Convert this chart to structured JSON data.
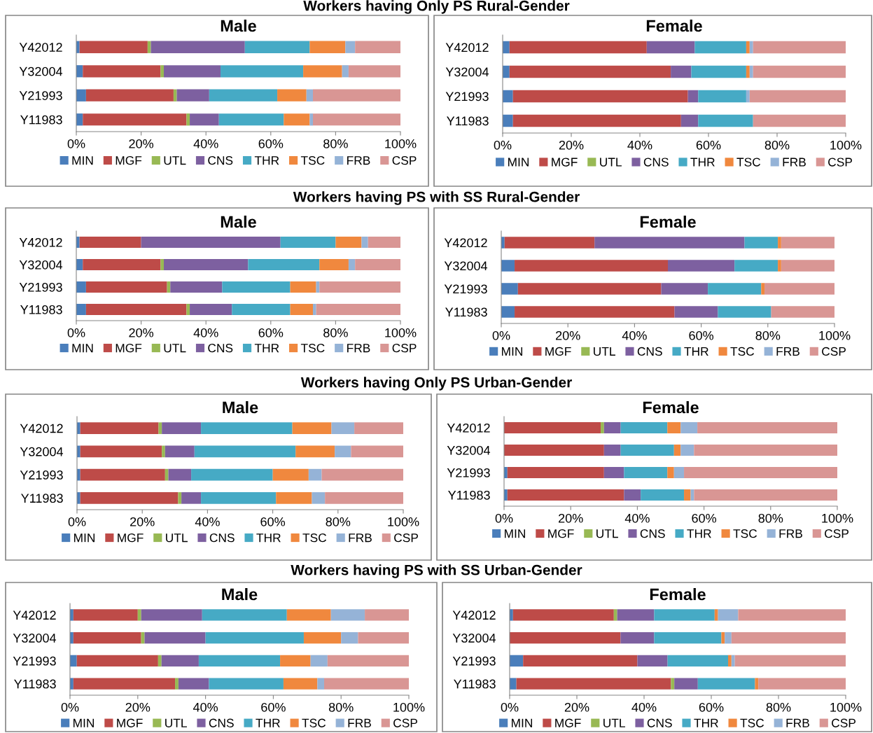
{
  "chart_data": [
    {
      "type": "bar",
      "orientation": "horizontal",
      "stacked": true,
      "subtitle": "Workers having Only PS Rural-Gender",
      "title": "Male",
      "categories": [
        "Y42012",
        "Y32004",
        "Y21993",
        "Y11983"
      ],
      "xlim": [
        0,
        100
      ],
      "xticks": [
        {
          "value": 0,
          "label": "0%"
        },
        {
          "value": 20,
          "label": "20%"
        },
        {
          "value": 40,
          "label": "40%"
        },
        {
          "value": 60,
          "label": "60%"
        },
        {
          "value": 80,
          "label": "80%"
        },
        {
          "value": 100,
          "label": "100%"
        }
      ],
      "legend": "bottom",
      "grid": false,
      "series": [
        {
          "name": "MIN",
          "color": "#4a7ebb",
          "values": [
            1,
            2,
            3,
            2
          ]
        },
        {
          "name": "MGF",
          "color": "#be4b48",
          "values": [
            21,
            24,
            27,
            32
          ]
        },
        {
          "name": "UTL",
          "color": "#98b954",
          "values": [
            1,
            1,
            1,
            1
          ]
        },
        {
          "name": "CNS",
          "color": "#7d60a0",
          "values": [
            29,
            17.5,
            10,
            9
          ]
        },
        {
          "name": "THR",
          "color": "#46aac5",
          "values": [
            20,
            25.5,
            21,
            20
          ]
        },
        {
          "name": "TSC",
          "color": "#f0883e",
          "values": [
            11,
            12,
            9,
            8
          ]
        },
        {
          "name": "FRB",
          "color": "#95b3d7",
          "values": [
            3,
            2,
            2,
            1
          ]
        },
        {
          "name": "CSP",
          "color": "#d99694",
          "values": [
            14,
            16,
            27,
            27
          ]
        }
      ]
    },
    {
      "type": "bar",
      "orientation": "horizontal",
      "stacked": true,
      "title": "Female",
      "categories": [
        "Y42012",
        "Y32004",
        "Y21993",
        "Y11983"
      ],
      "xlim": [
        0,
        100
      ],
      "xticks": [
        {
          "value": 0,
          "label": "0%"
        },
        {
          "value": 20,
          "label": "20%"
        },
        {
          "value": 40,
          "label": "40%"
        },
        {
          "value": 60,
          "label": "60%"
        },
        {
          "value": 80,
          "label": "80%"
        },
        {
          "value": 100,
          "label": "100%"
        }
      ],
      "legend": "bottom",
      "grid": false,
      "series": [
        {
          "name": "MIN",
          "color": "#4a7ebb",
          "values": [
            2,
            2,
            3,
            3
          ]
        },
        {
          "name": "MGF",
          "color": "#be4b48",
          "values": [
            40,
            47,
            51,
            49
          ]
        },
        {
          "name": "UTL",
          "color": "#98b954",
          "values": [
            0,
            0,
            0,
            0
          ]
        },
        {
          "name": "CNS",
          "color": "#7d60a0",
          "values": [
            14,
            6,
            3,
            5
          ]
        },
        {
          "name": "THR",
          "color": "#46aac5",
          "values": [
            15,
            16,
            14,
            16
          ]
        },
        {
          "name": "TSC",
          "color": "#f0883e",
          "values": [
            1,
            1,
            0,
            0
          ]
        },
        {
          "name": "FRB",
          "color": "#95b3d7",
          "values": [
            1,
            1,
            1,
            0
          ]
        },
        {
          "name": "CSP",
          "color": "#d99694",
          "values": [
            27,
            27,
            28,
            27
          ]
        }
      ]
    },
    {
      "type": "bar",
      "orientation": "horizontal",
      "stacked": true,
      "subtitle": "Workers having PS with SS Rural-Gender",
      "title": "Male",
      "categories": [
        "Y42012",
        "Y32004",
        "Y21993",
        "Y11983"
      ],
      "xlim": [
        0,
        100
      ],
      "xticks": [
        {
          "value": 0,
          "label": "0%"
        },
        {
          "value": 20,
          "label": "20%"
        },
        {
          "value": 40,
          "label": "40%"
        },
        {
          "value": 60,
          "label": "60%"
        },
        {
          "value": 80,
          "label": "80%"
        },
        {
          "value": 100,
          "label": "100%"
        }
      ],
      "legend": "bottom",
      "grid": false,
      "series": [
        {
          "name": "MIN",
          "color": "#4a7ebb",
          "values": [
            1,
            2,
            3,
            3
          ]
        },
        {
          "name": "MGF",
          "color": "#be4b48",
          "values": [
            19,
            24,
            25,
            31
          ]
        },
        {
          "name": "UTL",
          "color": "#98b954",
          "values": [
            0,
            1,
            1,
            1
          ]
        },
        {
          "name": "CNS",
          "color": "#7d60a0",
          "values": [
            43,
            26,
            16,
            13
          ]
        },
        {
          "name": "THR",
          "color": "#46aac5",
          "values": [
            17,
            22,
            21,
            18
          ]
        },
        {
          "name": "TSC",
          "color": "#f0883e",
          "values": [
            8,
            9,
            8,
            7
          ]
        },
        {
          "name": "FRB",
          "color": "#95b3d7",
          "values": [
            2,
            2,
            1,
            1
          ]
        },
        {
          "name": "CSP",
          "color": "#d99694",
          "values": [
            10,
            14,
            25,
            26
          ]
        }
      ]
    },
    {
      "type": "bar",
      "orientation": "horizontal",
      "stacked": true,
      "title": "Female",
      "categories": [
        "Y42012",
        "Y32004",
        "Y21993",
        "Y11983"
      ],
      "xlim": [
        0,
        100
      ],
      "xticks": [
        {
          "value": 0,
          "label": "0%"
        },
        {
          "value": 20,
          "label": "20%"
        },
        {
          "value": 40,
          "label": "40%"
        },
        {
          "value": 60,
          "label": "60%"
        },
        {
          "value": 80,
          "label": "80%"
        },
        {
          "value": 100,
          "label": "100%"
        }
      ],
      "legend": "bottom",
      "grid": false,
      "series": [
        {
          "name": "MIN",
          "color": "#4a7ebb",
          "values": [
            1,
            4,
            5,
            4
          ]
        },
        {
          "name": "MGF",
          "color": "#be4b48",
          "values": [
            27,
            46,
            43,
            48
          ]
        },
        {
          "name": "UTL",
          "color": "#98b954",
          "values": [
            0,
            0,
            0,
            0
          ]
        },
        {
          "name": "CNS",
          "color": "#7d60a0",
          "values": [
            45,
            20,
            14,
            13
          ]
        },
        {
          "name": "THR",
          "color": "#46aac5",
          "values": [
            10,
            13,
            16,
            16
          ]
        },
        {
          "name": "TSC",
          "color": "#f0883e",
          "values": [
            1,
            1,
            1,
            0
          ]
        },
        {
          "name": "FRB",
          "color": "#95b3d7",
          "values": [
            0,
            0,
            0,
            0
          ]
        },
        {
          "name": "CSP",
          "color": "#d99694",
          "values": [
            16,
            16,
            21,
            19
          ]
        }
      ]
    },
    {
      "type": "bar",
      "orientation": "horizontal",
      "stacked": true,
      "subtitle": "Workers having Only PS Urban-Gender",
      "title": "Male",
      "categories": [
        "Y42012",
        "Y32004",
        "Y21993",
        "Y11983"
      ],
      "xlim": [
        0,
        100
      ],
      "xticks": [
        {
          "value": 0,
          "label": "0%"
        },
        {
          "value": 20,
          "label": "20%"
        },
        {
          "value": 40,
          "label": "40%"
        },
        {
          "value": 60,
          "label": "60%"
        },
        {
          "value": 80,
          "label": "80%"
        },
        {
          "value": 100,
          "label": "100%"
        }
      ],
      "legend": "bottom",
      "grid": false,
      "series": [
        {
          "name": "MIN",
          "color": "#4a7ebb",
          "values": [
            1,
            1,
            1,
            1
          ]
        },
        {
          "name": "MGF",
          "color": "#be4b48",
          "values": [
            24,
            25,
            26,
            30
          ]
        },
        {
          "name": "UTL",
          "color": "#98b954",
          "values": [
            1,
            1,
            1,
            1
          ]
        },
        {
          "name": "CNS",
          "color": "#7d60a0",
          "values": [
            12,
            9,
            7,
            6
          ]
        },
        {
          "name": "THR",
          "color": "#46aac5",
          "values": [
            28,
            31,
            25,
            23
          ]
        },
        {
          "name": "TSC",
          "color": "#f0883e",
          "values": [
            12,
            12,
            11,
            11
          ]
        },
        {
          "name": "FRB",
          "color": "#95b3d7",
          "values": [
            7,
            5,
            4,
            4
          ]
        },
        {
          "name": "CSP",
          "color": "#d99694",
          "values": [
            15,
            16,
            25,
            24
          ]
        }
      ]
    },
    {
      "type": "bar",
      "orientation": "horizontal",
      "stacked": true,
      "title": "Female",
      "categories": [
        "Y42012",
        "Y32004",
        "Y21993",
        "Y11983"
      ],
      "xlim": [
        0,
        100
      ],
      "xticks": [
        {
          "value": 0,
          "label": "0%"
        },
        {
          "value": 20,
          "label": "20%"
        },
        {
          "value": 40,
          "label": "40%"
        },
        {
          "value": 60,
          "label": "60%"
        },
        {
          "value": 80,
          "label": "80%"
        },
        {
          "value": 100,
          "label": "100%"
        }
      ],
      "legend": "bottom",
      "grid": false,
      "series": [
        {
          "name": "MIN",
          "color": "#4a7ebb",
          "values": [
            0,
            0,
            1,
            1
          ]
        },
        {
          "name": "MGF",
          "color": "#be4b48",
          "values": [
            29,
            30,
            29,
            35
          ]
        },
        {
          "name": "UTL",
          "color": "#98b954",
          "values": [
            1,
            0,
            0,
            0
          ]
        },
        {
          "name": "CNS",
          "color": "#7d60a0",
          "values": [
            5,
            5,
            6,
            5
          ]
        },
        {
          "name": "THR",
          "color": "#46aac5",
          "values": [
            14,
            16,
            13,
            13
          ]
        },
        {
          "name": "TSC",
          "color": "#f0883e",
          "values": [
            4,
            2,
            2,
            2
          ]
        },
        {
          "name": "FRB",
          "color": "#95b3d7",
          "values": [
            5,
            4,
            3,
            1
          ]
        },
        {
          "name": "CSP",
          "color": "#d99694",
          "values": [
            42,
            43,
            46,
            43
          ]
        }
      ]
    },
    {
      "type": "bar",
      "orientation": "horizontal",
      "stacked": true,
      "subtitle": "Workers having PS with SS Urban-Gender",
      "title": "Male",
      "categories": [
        "Y42012",
        "Y32004",
        "Y21993",
        "Y11983"
      ],
      "xlim": [
        0,
        100
      ],
      "xticks": [
        {
          "value": 0,
          "label": "0%"
        },
        {
          "value": 20,
          "label": "20%"
        },
        {
          "value": 40,
          "label": "40%"
        },
        {
          "value": 60,
          "label": "60%"
        },
        {
          "value": 80,
          "label": "80%"
        },
        {
          "value": 100,
          "label": "100%"
        }
      ],
      "legend": "bottom",
      "grid": false,
      "series": [
        {
          "name": "MIN",
          "color": "#4a7ebb",
          "values": [
            1,
            1,
            2,
            1
          ]
        },
        {
          "name": "MGF",
          "color": "#be4b48",
          "values": [
            19,
            20,
            24,
            30
          ]
        },
        {
          "name": "UTL",
          "color": "#98b954",
          "values": [
            1,
            1,
            1,
            1
          ]
        },
        {
          "name": "CNS",
          "color": "#7d60a0",
          "values": [
            18,
            18,
            11,
            9
          ]
        },
        {
          "name": "THR",
          "color": "#46aac5",
          "values": [
            25,
            29,
            24,
            22
          ]
        },
        {
          "name": "TSC",
          "color": "#f0883e",
          "values": [
            13,
            11,
            9,
            10
          ]
        },
        {
          "name": "FRB",
          "color": "#95b3d7",
          "values": [
            10,
            5,
            5,
            2
          ]
        },
        {
          "name": "CSP",
          "color": "#d99694",
          "values": [
            13,
            15,
            24,
            25
          ]
        }
      ]
    },
    {
      "type": "bar",
      "orientation": "horizontal",
      "stacked": true,
      "title": "Female",
      "categories": [
        "Y42012",
        "Y32004",
        "Y21993",
        "Y11983"
      ],
      "xlim": [
        0,
        100
      ],
      "xticks": [
        {
          "value": 0,
          "label": "0%"
        },
        {
          "value": 20,
          "label": "20%"
        },
        {
          "value": 40,
          "label": "40%"
        },
        {
          "value": 60,
          "label": "60%"
        },
        {
          "value": 80,
          "label": "80%"
        },
        {
          "value": 100,
          "label": "100%"
        }
      ],
      "legend": "bottom",
      "grid": false,
      "series": [
        {
          "name": "MIN",
          "color": "#4a7ebb",
          "values": [
            1,
            0,
            4,
            2
          ]
        },
        {
          "name": "MGF",
          "color": "#be4b48",
          "values": [
            30,
            33,
            34,
            46
          ]
        },
        {
          "name": "UTL",
          "color": "#98b954",
          "values": [
            1,
            0,
            0,
            1
          ]
        },
        {
          "name": "CNS",
          "color": "#7d60a0",
          "values": [
            11,
            10,
            9,
            7
          ]
        },
        {
          "name": "THR",
          "color": "#46aac5",
          "values": [
            18,
            20,
            18,
            17
          ]
        },
        {
          "name": "TSC",
          "color": "#f0883e",
          "values": [
            1,
            1,
            1,
            1
          ]
        },
        {
          "name": "FRB",
          "color": "#95b3d7",
          "values": [
            6,
            2,
            1,
            0
          ]
        },
        {
          "name": "CSP",
          "color": "#d99694",
          "values": [
            32,
            34,
            33,
            26
          ]
        }
      ]
    }
  ]
}
